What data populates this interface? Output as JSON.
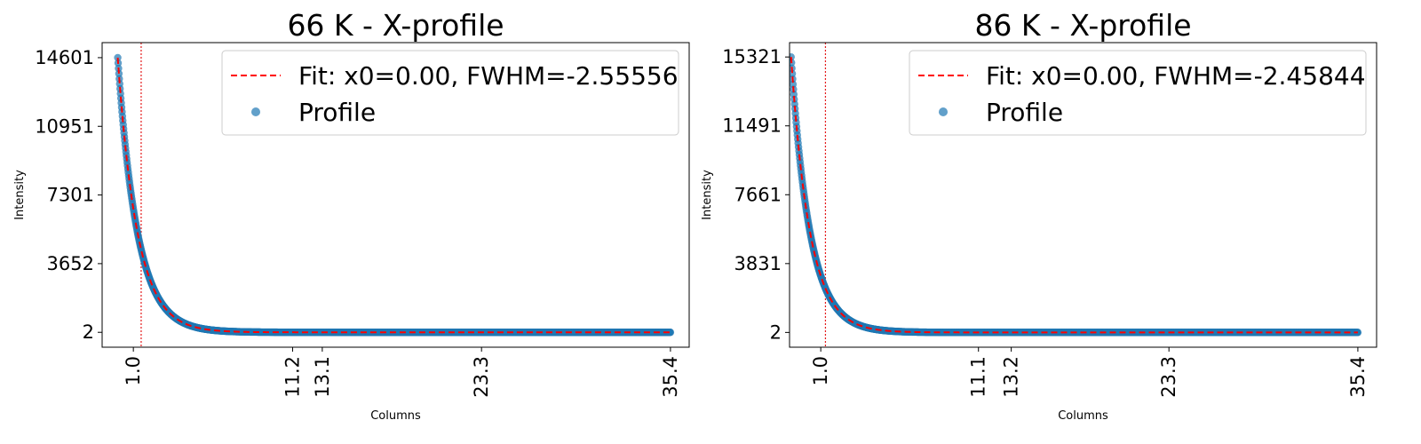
{
  "chart_data": [
    {
      "type": "scatter",
      "title": "66 K - X-profile",
      "xlabel": "Columns",
      "ylabel": "Intensity",
      "xlim": [
        -1.0,
        36.6
      ],
      "ylim": [
        -790,
        15400
      ],
      "xticks": [
        1.0,
        11.2,
        13.1,
        23.3,
        35.4
      ],
      "xtick_labels": [
        "1.0",
        "11.2",
        "13.1",
        "23.3",
        "35.4"
      ],
      "yticks": [
        2,
        3652,
        7301,
        10951,
        14601
      ],
      "ytick_labels": [
        "2",
        "3652",
        "7301",
        "10951",
        "14601"
      ],
      "vlines": [
        -1.2,
        1.5
      ],
      "grid": false,
      "legend_position": "top-right",
      "legend": [
        "Fit: x0=0.00, FWHM=-2.55556",
        "Profile"
      ],
      "profile": {
        "x0": 0.0,
        "amplitude": 14601,
        "baseline": 2,
        "x_start": 0.0,
        "x_end": 35.4,
        "decay": 1.25
      },
      "series": [
        {
          "name": "Fit: x0=0.00, FWHM=-2.55556",
          "kind": "line",
          "color": "#ff0000"
        },
        {
          "name": "Profile",
          "kind": "scatter",
          "color": "#1f77b4"
        }
      ]
    },
    {
      "type": "scatter",
      "title": "86 K - X-profile",
      "xlabel": "Columns",
      "ylabel": "Intensity",
      "xlim": [
        -1.0,
        36.6
      ],
      "ylim": [
        -820,
        16120
      ],
      "xticks": [
        1.0,
        11.1,
        13.2,
        23.3,
        35.4
      ],
      "xtick_labels": [
        "1.0",
        "11.1",
        "13.2",
        "23.3",
        "35.4"
      ],
      "yticks": [
        2,
        3831,
        7661,
        11491,
        15321
      ],
      "ytick_labels": [
        "2",
        "3831",
        "7661",
        "11491",
        "15321"
      ],
      "vlines": [
        -1.2,
        1.3
      ],
      "grid": false,
      "legend_position": "top-right",
      "legend": [
        "Fit: x0=0.00, FWHM=-2.45844",
        "Profile"
      ],
      "profile": {
        "x0": 0.0,
        "amplitude": 15321,
        "baseline": 2,
        "x_start": -0.9,
        "x_end": 35.4,
        "decay": 1.2
      },
      "series": [
        {
          "name": "Fit: x0=0.00, FWHM=-2.45844",
          "kind": "line",
          "color": "#ff0000"
        },
        {
          "name": "Profile",
          "kind": "scatter",
          "color": "#1f77b4"
        }
      ]
    }
  ]
}
